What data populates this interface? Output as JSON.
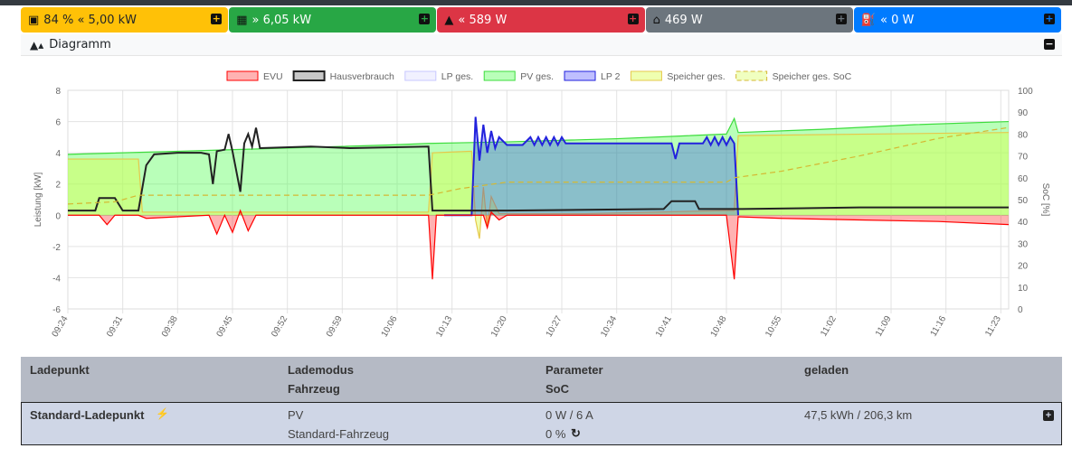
{
  "cards": [
    {
      "name": "battery",
      "icon": "car-battery-icon",
      "text": "84 % « 5,00 kW",
      "bg": "#ffc107",
      "fg": "#212529",
      "plus_color": "#ffc107"
    },
    {
      "name": "pv",
      "icon": "solar-panel-icon",
      "text": "» 6,05 kW",
      "bg": "#28a745",
      "fg": "#ffffff",
      "plus_color": "#28a745"
    },
    {
      "name": "grid",
      "icon": "power-pylon-icon",
      "text": "« 589 W",
      "bg": "#dc3545",
      "fg": "#ffffff",
      "plus_color": "#dc3545"
    },
    {
      "name": "house",
      "icon": "home-icon",
      "text": "469 W",
      "bg": "#6c757d",
      "fg": "#ffffff",
      "plus_color": "#6c757d"
    },
    {
      "name": "charge",
      "icon": "charging-station-icon",
      "text": "« 0 W",
      "bg": "#007bff",
      "fg": "#ffffff",
      "plus_color": "#007bff"
    }
  ],
  "diagram": {
    "title": "Diagramm",
    "icon": "area-chart-icon"
  },
  "chart_data": {
    "type": "area",
    "ylabel": "Leistung [kW]",
    "y2label": "SoC [%]",
    "ylim": [
      -6,
      8
    ],
    "y2lim": [
      0,
      100
    ],
    "yticks": [
      8,
      6,
      4,
      2,
      0,
      -2,
      -4,
      -6
    ],
    "y2ticks": [
      100,
      90,
      80,
      70,
      60,
      50,
      40,
      30,
      20,
      10,
      0
    ],
    "xticks": [
      "09:24",
      "09:31",
      "09:38",
      "09:45",
      "09:52",
      "09:59",
      "10:06",
      "10:13",
      "10:20",
      "10:27",
      "10:34",
      "10:41",
      "10:48",
      "10:55",
      "11:02",
      "11:09",
      "11:16",
      "11:23"
    ],
    "xrange": [
      "09:24",
      "11:24"
    ],
    "grid": true,
    "legend_position": "top",
    "series": [
      {
        "name": "EVU",
        "color": "#ff0000",
        "fill": "rgba(255,0,0,0.3)",
        "points": [
          [
            "09:24",
            0
          ],
          [
            "09:28",
            0
          ],
          [
            "09:29",
            -0.6
          ],
          [
            "09:30",
            0
          ],
          [
            "09:33",
            0
          ],
          [
            "09:34",
            -0.2
          ],
          [
            "09:42",
            0
          ],
          [
            "09:43",
            -1.2
          ],
          [
            "09:44",
            0
          ],
          [
            "09:45",
            -1.1
          ],
          [
            "09:46",
            0.3
          ],
          [
            "09:47",
            -1.0
          ],
          [
            "09:48",
            0
          ],
          [
            "10:00",
            0
          ],
          [
            "10:10",
            0
          ],
          [
            "10:10.5",
            -4.1
          ],
          [
            "10:11",
            0
          ],
          [
            "10:17",
            0
          ],
          [
            "10:17.5",
            -0.8
          ],
          [
            "10:18",
            0.2
          ],
          [
            "10:19",
            -0.3
          ],
          [
            "10:20",
            0
          ],
          [
            "10:48",
            0
          ],
          [
            "10:49",
            -4.1
          ],
          [
            "10:49.5",
            -0.1
          ],
          [
            "10:55",
            -0.2
          ],
          [
            "11:05",
            -0.3
          ],
          [
            "11:15",
            -0.4
          ],
          [
            "11:24",
            -0.6
          ]
        ]
      },
      {
        "name": "Hausverbrauch",
        "color": "#222222",
        "fill": "none",
        "points": [
          [
            "09:24",
            0.3
          ],
          [
            "09:27.5",
            0.3
          ],
          [
            "09:28",
            1.1
          ],
          [
            "09:30",
            1.1
          ],
          [
            "09:31",
            0.3
          ],
          [
            "09:33",
            0.3
          ],
          [
            "09:34",
            3.2
          ],
          [
            "09:35",
            3.9
          ],
          [
            "09:38",
            4.0
          ],
          [
            "09:41",
            4.0
          ],
          [
            "09:42",
            3.9
          ],
          [
            "09:42.5",
            2.0
          ],
          [
            "09:43",
            4.1
          ],
          [
            "09:44",
            4.2
          ],
          [
            "09:44.5",
            5.2
          ],
          [
            "09:45",
            4.1
          ],
          [
            "09:46",
            1.5
          ],
          [
            "09:46.5",
            4.6
          ],
          [
            "09:47",
            5.2
          ],
          [
            "09:47.5",
            4.4
          ],
          [
            "09:48",
            5.6
          ],
          [
            "09:48.5",
            4.3
          ],
          [
            "09:55",
            4.4
          ],
          [
            "10:00",
            4.3
          ],
          [
            "10:10",
            4.4
          ],
          [
            "10:10.5",
            0.3
          ],
          [
            "10:20",
            0.3
          ],
          [
            "10:30",
            0.35
          ],
          [
            "10:40",
            0.4
          ],
          [
            "10:41",
            0.9
          ],
          [
            "10:44",
            0.9
          ],
          [
            "10:44.5",
            0.4
          ],
          [
            "10:50",
            0.4
          ],
          [
            "11:05",
            0.5
          ],
          [
            "11:24",
            0.5
          ]
        ]
      },
      {
        "name": "LP ges.",
        "color": "#c8c8ff",
        "fill": "rgba(220,220,255,0.4)",
        "points": []
      },
      {
        "name": "PV ges.",
        "color": "#3ddc3d",
        "fill": "rgba(80,255,80,0.4)",
        "points": [
          [
            "09:24",
            3.9
          ],
          [
            "09:38",
            4.1
          ],
          [
            "09:52",
            4.3
          ],
          [
            "10:05",
            4.5
          ],
          [
            "10:10",
            4.6
          ],
          [
            "10:20",
            4.7
          ],
          [
            "10:34",
            4.9
          ],
          [
            "10:48",
            5.2
          ],
          [
            "10:49",
            6.2
          ],
          [
            "10:49.5",
            5.3
          ],
          [
            "11:00",
            5.5
          ],
          [
            "11:12",
            5.8
          ],
          [
            "11:24",
            6.0
          ]
        ]
      },
      {
        "name": "LP 2",
        "color": "#2222dd",
        "fill": "rgba(0,0,255,0.25)",
        "points": [
          [
            "10:12",
            0
          ],
          [
            "10:15.5",
            0
          ],
          [
            "10:16",
            6.3
          ],
          [
            "10:16.5",
            3.5
          ],
          [
            "10:17",
            5.8
          ],
          [
            "10:17.5",
            4.0
          ],
          [
            "10:18",
            5.4
          ],
          [
            "10:18.5",
            4.3
          ],
          [
            "10:19",
            5.0
          ],
          [
            "10:20",
            4.5
          ],
          [
            "10:22",
            4.5
          ],
          [
            "10:23",
            5.0
          ],
          [
            "10:23.5",
            4.5
          ],
          [
            "10:24",
            5.0
          ],
          [
            "10:24.5",
            4.5
          ],
          [
            "10:25",
            5.0
          ],
          [
            "10:25.5",
            4.5
          ],
          [
            "10:26",
            5.0
          ],
          [
            "10:26.5",
            4.5
          ],
          [
            "10:27",
            5.0
          ],
          [
            "10:27.5",
            4.6
          ],
          [
            "10:41",
            4.6
          ],
          [
            "10:41.5",
            3.6
          ],
          [
            "10:42",
            4.6
          ],
          [
            "10:45",
            4.6
          ],
          [
            "10:45.5",
            5.0
          ],
          [
            "10:46",
            4.5
          ],
          [
            "10:46.5",
            5.0
          ],
          [
            "10:47",
            4.5
          ],
          [
            "10:47.5",
            5.0
          ],
          [
            "10:48",
            4.5
          ],
          [
            "10:48.5",
            5.0
          ],
          [
            "10:49",
            4.6
          ],
          [
            "10:49.5",
            0
          ]
        ]
      },
      {
        "name": "Speicher ges.",
        "color": "#e6c84b",
        "fill": "rgba(220,255,80,0.45)",
        "points": [
          [
            "09:24",
            3.6
          ],
          [
            "09:33",
            3.6
          ],
          [
            "09:33.5",
            0.2
          ],
          [
            "09:40",
            0.2
          ],
          [
            "10:00",
            0.2
          ],
          [
            "10:10",
            0.2
          ],
          [
            "10:10.5",
            4.0
          ],
          [
            "10:15.5",
            4.1
          ],
          [
            "10:16",
            -0.3
          ],
          [
            "10:16.5",
            -1.5
          ],
          [
            "10:17",
            1.8
          ],
          [
            "10:17.5",
            -0.8
          ],
          [
            "10:18",
            1.2
          ],
          [
            "10:19",
            0.1
          ],
          [
            "10:30",
            0.1
          ],
          [
            "10:48",
            0.3
          ],
          [
            "10:49",
            0.3
          ],
          [
            "10:49.5",
            5.1
          ],
          [
            "11:24",
            5.3
          ]
        ]
      },
      {
        "name": "Speicher ges. SoC",
        "color": "#d4b832",
        "fill": "none",
        "dashed": true,
        "axis": "right",
        "points": [
          [
            "09:24",
            48
          ],
          [
            "09:30",
            49
          ],
          [
            "09:33",
            52
          ],
          [
            "10:10",
            52
          ],
          [
            "10:14",
            55
          ],
          [
            "10:20",
            58
          ],
          [
            "10:48",
            58
          ],
          [
            "10:49",
            60
          ],
          [
            "10:55",
            63
          ],
          [
            "11:05",
            70
          ],
          [
            "11:15",
            78
          ],
          [
            "11:24",
            83
          ]
        ]
      }
    ]
  },
  "table": {
    "headers": {
      "col1": "Ladepunkt",
      "col2a": "Lademodus",
      "col2b": "Fahrzeug",
      "col3a": "Parameter",
      "col3b": "SoC",
      "col4": "geladen"
    },
    "row": {
      "name": "Standard-Ladepunkt",
      "mode": "PV",
      "vehicle": "Standard-Fahrzeug",
      "param": "0 W / 6 A",
      "soc": "0 %",
      "charged": "47,5 kWh / 206,3 km"
    }
  }
}
